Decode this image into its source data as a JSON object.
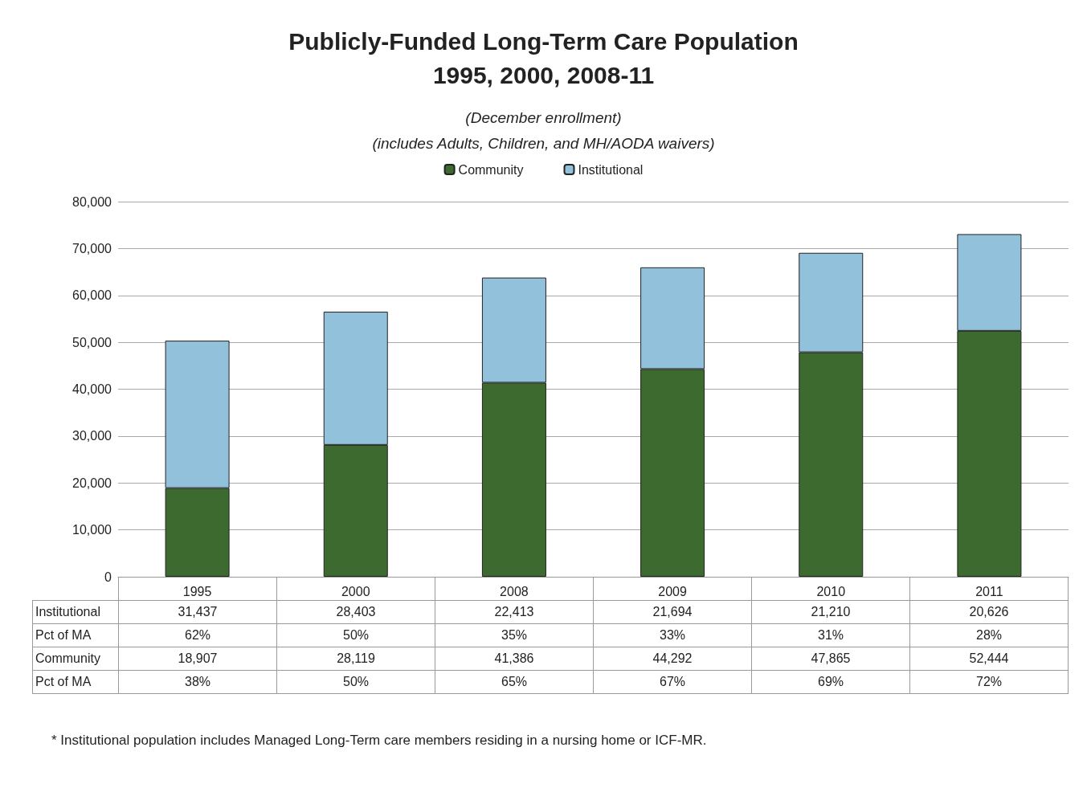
{
  "chart_data": {
    "type": "bar",
    "title": "Publicly-Funded Long-Term Care Population\n1995, 2000, 2008-11",
    "subtitle": "(December enrollment)\n(includes Adults, Children, and MH/AODA waivers)",
    "categories": [
      "1995",
      "2000",
      "2008",
      "2009",
      "2010",
      "2011"
    ],
    "series": [
      {
        "name": "Community",
        "color": "#3d6a2f",
        "values": [
          18907,
          28119,
          41386,
          44292,
          47865,
          52444
        ],
        "value_labels": [
          "18,907",
          "28,119",
          "41,386",
          "44,292",
          "47,865",
          "52,444"
        ]
      },
      {
        "name": "Institutional",
        "color": "#92c1dc",
        "values": [
          31437,
          28403,
          22413,
          21694,
          21210,
          20626
        ],
        "value_labels": [
          "31,437",
          "28,403",
          "22,413",
          "21,694",
          "21,210",
          "20,626"
        ]
      }
    ],
    "stacked": true,
    "ylim": [
      0,
      80000
    ],
    "yticks": [
      0,
      {
        "value": 10000,
        "label": "10,000"
      },
      {
        "value": 20000,
        "label": "20,000"
      },
      {
        "value": 30000,
        "label": "30,000"
      },
      {
        "value": 40000,
        "label": "40,000"
      },
      {
        "value": 50000,
        "label": "50,000"
      },
      {
        "value": 60000,
        "label": "60,000"
      },
      {
        "value": 70000,
        "label": "70,000"
      },
      {
        "value": 80000,
        "label": "80,000"
      }
    ],
    "grid": "y",
    "legend": "top",
    "annotations": [
      "Pct of MA",
      "62%",
      "50%",
      "35%",
      "33%",
      "31%",
      "28%",
      "Pct of MA",
      "38%",
      "50%",
      "65%",
      "67%",
      "69%",
      "72%",
      "* Institutional population includes Managed Long-Term care members residing in a nursing home or ICF-MR."
    ]
  }
}
